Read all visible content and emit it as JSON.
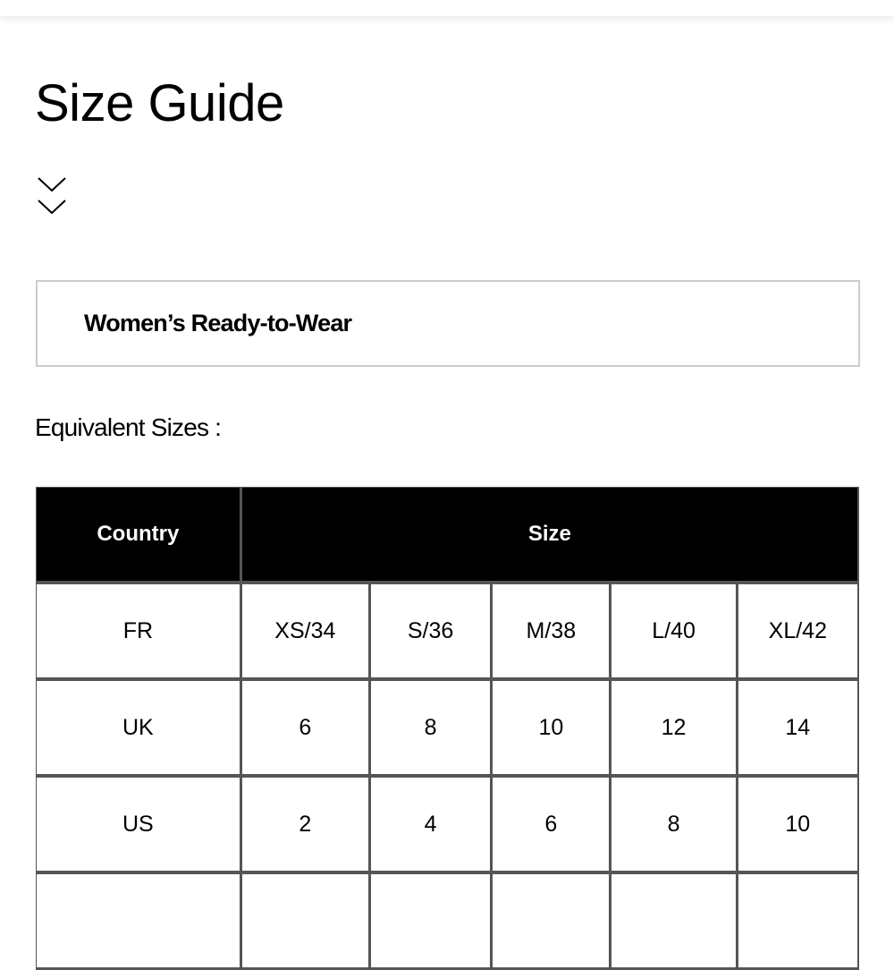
{
  "page": {
    "title": "Size Guide",
    "chevron_icon": "double-chevron-down"
  },
  "category": {
    "label": "Women’s Ready-to-Wear"
  },
  "section": {
    "label": "Equivalent Sizes :"
  },
  "table": {
    "headers": [
      "Country",
      "Size"
    ],
    "rows": [
      [
        "FR",
        "XS/34",
        "S/36",
        "M/38",
        "L/40",
        "XL/42"
      ],
      [
        "UK",
        "6",
        "8",
        "10",
        "12",
        "14"
      ],
      [
        "US",
        "2",
        "4",
        "6",
        "8",
        "10"
      ],
      [
        "",
        "",
        "",
        "",
        "",
        ""
      ]
    ]
  }
}
